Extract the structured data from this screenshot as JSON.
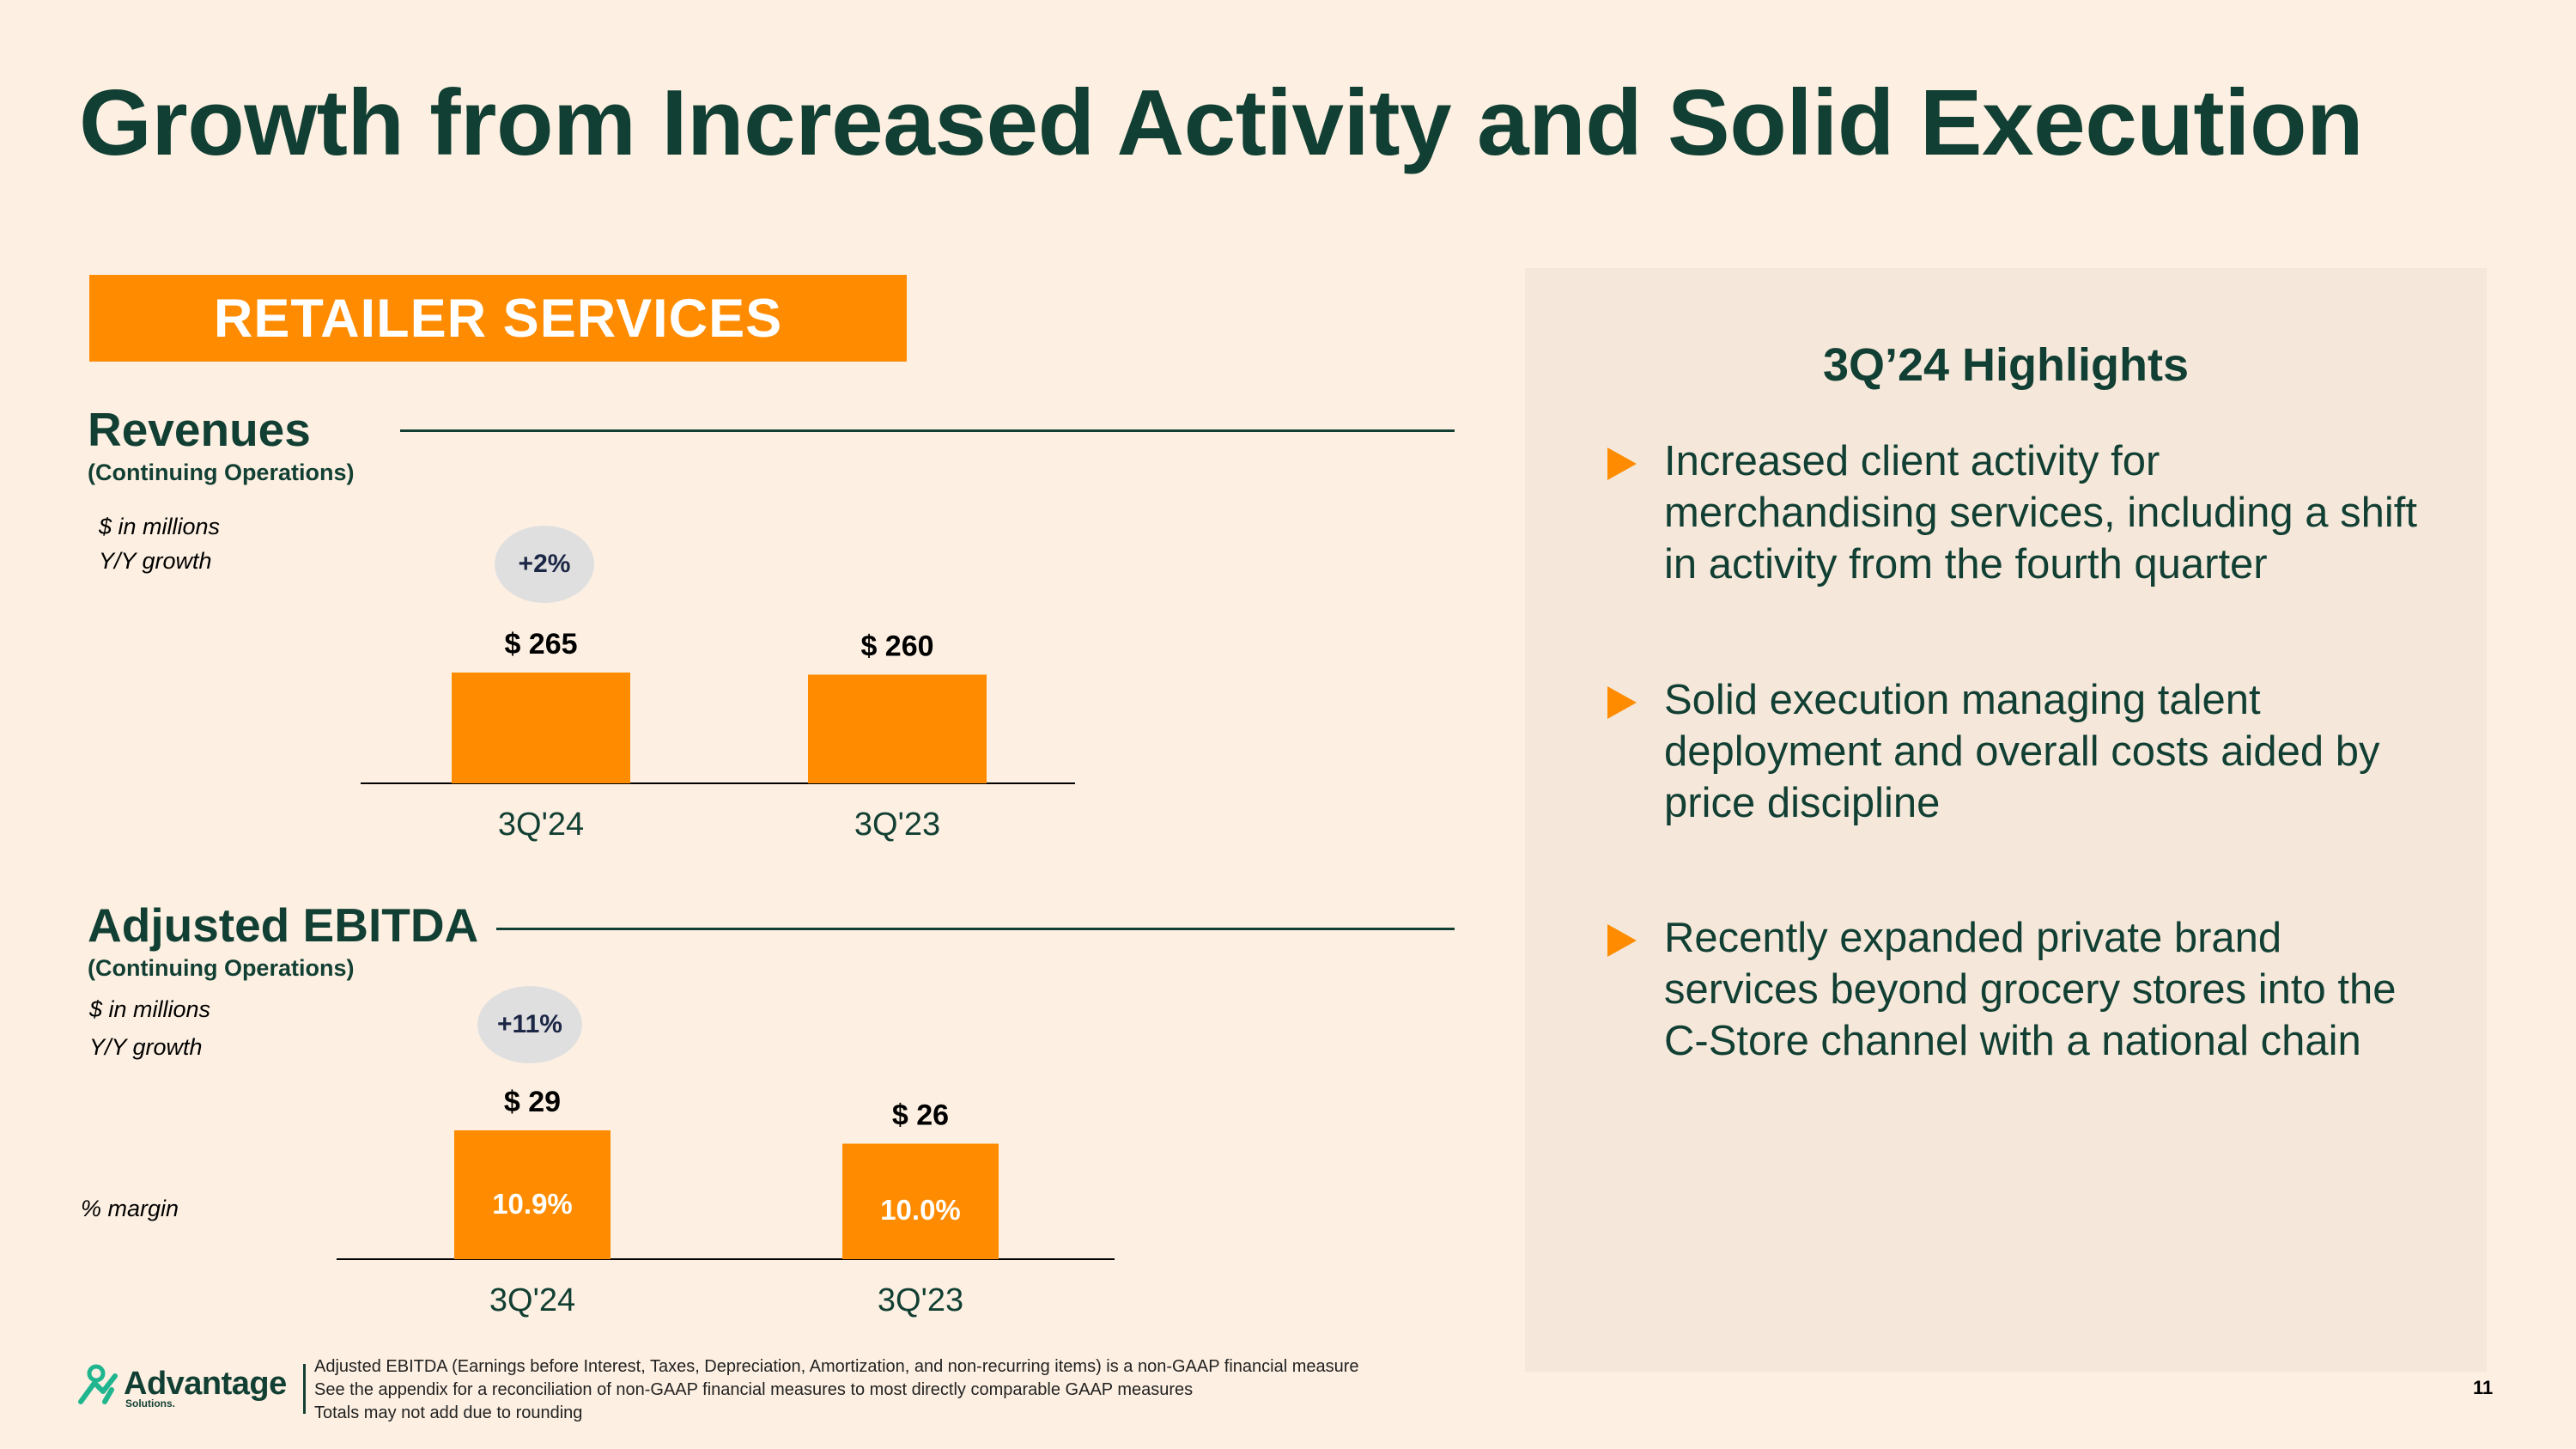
{
  "slide": {
    "title": "Growth from Increased Activity and Solid Execution",
    "segment_banner": "RETAILER SERVICES",
    "page_number": "11"
  },
  "colors": {
    "background": "#fdf0e2",
    "dark_green": "#123f33",
    "orange": "#ff8c00",
    "panel": "#f5e8da",
    "pill": "#e0dfe0"
  },
  "revenues": {
    "title": "Revenues",
    "subtitle": "(Continuing Operations)",
    "unit_note": "$ in millions",
    "growth_note": "Y/Y growth",
    "growth_badge": "+2%"
  },
  "ebitda": {
    "title": "Adjusted EBITDA",
    "subtitle": "(Continuing Operations)",
    "unit_note": "$ in millions",
    "growth_note": "Y/Y growth",
    "growth_badge": "+11%",
    "margin_note": "% margin"
  },
  "chart_data": [
    {
      "type": "bar",
      "title": "Revenues (Continuing Operations)",
      "ylabel": "$ in millions",
      "categories": [
        "3Q'24",
        "3Q'23"
      ],
      "values": [
        265,
        260
      ],
      "data_labels": [
        "$ 265",
        "$ 260"
      ],
      "growth": "+2%",
      "ylim": [
        0,
        265
      ]
    },
    {
      "type": "bar",
      "title": "Adjusted EBITDA (Continuing Operations)",
      "ylabel": "$ in millions",
      "categories": [
        "3Q'24",
        "3Q'23"
      ],
      "values": [
        29,
        26
      ],
      "data_labels": [
        "$ 29",
        "$ 26"
      ],
      "margins": [
        "10.9%",
        "10.0%"
      ],
      "growth": "+11%",
      "ylim": [
        0,
        29
      ]
    }
  ],
  "highlights": {
    "title": "3Q’24 Highlights",
    "items": [
      "Increased client activity for merchandising services, including a shift in activity from the fourth quarter",
      "Solid execution managing talent deployment and overall costs aided by price discipline",
      "Recently expanded private brand services beyond grocery stores into the C-Store channel with a national chain"
    ]
  },
  "logo": {
    "name": "Advantage",
    "sub": "Solutions."
  },
  "footnotes": [
    "Adjusted EBITDA (Earnings before Interest, Taxes, Depreciation, Amortization, and non-recurring items) is a non-GAAP financial measure",
    "See the appendix for a reconciliation of non-GAAP financial measures to most directly comparable GAAP measures",
    "Totals may not add due to rounding"
  ]
}
